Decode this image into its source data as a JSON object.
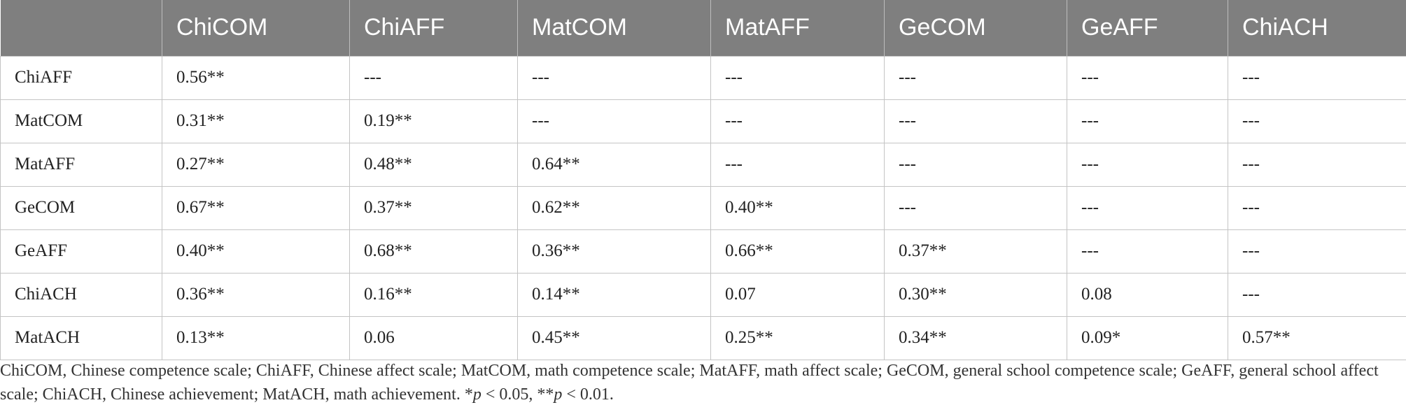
{
  "table": {
    "headers": [
      "",
      "ChiCOM",
      "ChiAFF",
      "MatCOM",
      "MatAFF",
      "GeCOM",
      "GeAFF",
      "ChiACH"
    ],
    "rows": [
      [
        "ChiAFF",
        "0.56**",
        "---",
        "---",
        "---",
        "---",
        "---",
        "---"
      ],
      [
        "MatCOM",
        "0.31**",
        "0.19**",
        "---",
        "---",
        "---",
        "---",
        "---"
      ],
      [
        "MatAFF",
        "0.27**",
        "0.48**",
        "0.64**",
        "---",
        "---",
        "---",
        "---"
      ],
      [
        "GeCOM",
        "0.67**",
        "0.37**",
        "0.62**",
        "0.40**",
        "---",
        "---",
        "---"
      ],
      [
        "GeAFF",
        "0.40**",
        "0.68**",
        "0.36**",
        "0.66**",
        "0.37**",
        "---",
        "---"
      ],
      [
        "ChiACH",
        "0.36**",
        "0.16**",
        "0.14**",
        "0.07",
        "0.30**",
        "0.08",
        "---"
      ],
      [
        "MatACH",
        "0.13**",
        "0.06",
        "0.45**",
        "0.25**",
        "0.34**",
        "0.09*",
        "0.57**"
      ]
    ]
  },
  "footnote": {
    "text_main": "ChiCOM, Chinese competence scale; ChiAFF, Chinese affect scale; MatCOM, math competence scale; MatAFF, math affect scale; GeCOM, general school competence scale; GeAFF, general school affect scale; ChiACH, Chinese achievement; MatACH, math achievement. ",
    "sig1_prefix": "*",
    "sig1_var": "p",
    "sig1_rest": " < 0.05, ",
    "sig2_prefix": "**",
    "sig2_var": "p",
    "sig2_rest": " < 0.01."
  }
}
